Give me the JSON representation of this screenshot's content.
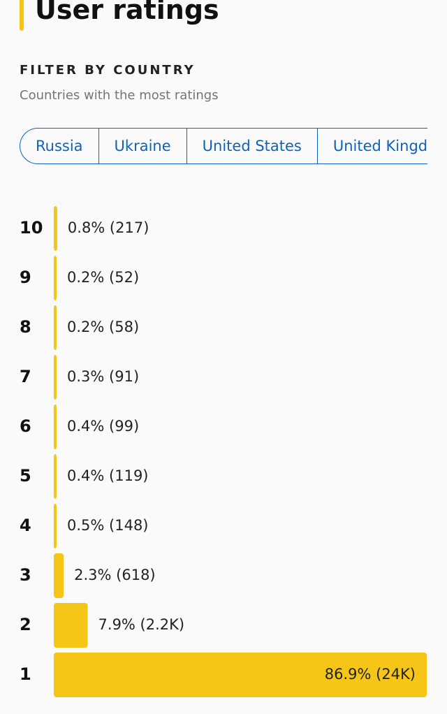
{
  "header": {
    "title": "User ratings",
    "filter_heading": "FILTER BY COUNTRY",
    "filter_subtitle": "Countries with the most ratings"
  },
  "tabs": [
    "Russia",
    "Ukraine",
    "United States",
    "United Kingdom"
  ],
  "chart_data": {
    "type": "bar",
    "orientation": "horizontal",
    "color": "#f5c518",
    "categories": [
      "10",
      "9",
      "8",
      "7",
      "6",
      "5",
      "4",
      "3",
      "2",
      "1"
    ],
    "values": [
      0.8,
      0.2,
      0.2,
      0.3,
      0.4,
      0.4,
      0.5,
      2.3,
      7.9,
      86.9
    ],
    "value_labels": [
      "0.8% (217)",
      "0.2% (52)",
      "0.2% (58)",
      "0.3% (91)",
      "0.4% (99)",
      "0.4% (119)",
      "0.5% (148)",
      "2.3% (618)",
      "7.9% (2.2K)",
      "86.9% (24K)"
    ],
    "xlim": [
      0,
      86.9
    ]
  }
}
